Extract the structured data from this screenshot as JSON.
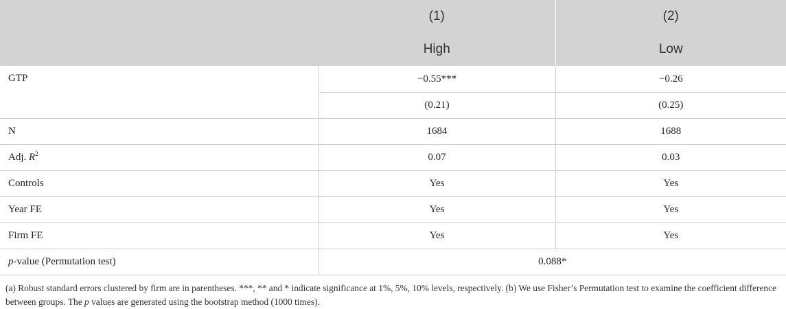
{
  "header": {
    "row1": [
      "",
      "(1)",
      "(2)"
    ],
    "row2": [
      "",
      "High",
      "Low"
    ]
  },
  "rows": {
    "gtp": {
      "label": "GTP",
      "coef": [
        "−0.55***",
        "−0.26"
      ],
      "se": [
        "(0.21)",
        "(0.25)"
      ]
    },
    "n": {
      "label": "N",
      "values": [
        "1684",
        "1688"
      ]
    },
    "adjr2": {
      "label_prefix": "Adj. ",
      "label_var": "R",
      "label_sup": "2",
      "values": [
        "0.07",
        "0.03"
      ]
    },
    "controls": {
      "label": "Controls",
      "values": [
        "Yes",
        "Yes"
      ]
    },
    "yearfe": {
      "label": "Year FE",
      "values": [
        "Yes",
        "Yes"
      ]
    },
    "firmfe": {
      "label": "Firm FE",
      "values": [
        "Yes",
        "Yes"
      ]
    },
    "pvalue": {
      "label_var": "p",
      "label_rest": "-value (Permutation test)",
      "value": "0.088*"
    }
  },
  "notes": {
    "part1": "(a) Robust standard errors clustered by firm are in parentheses. ***, ** and * indicate significance at 1%, 5%, 10% levels, respectively. (b) We use Fisher’s Permutation test to examine the coefficient difference between groups. The ",
    "p": "p",
    "part2": " values are generated using the bootstrap method (1000 times)."
  }
}
